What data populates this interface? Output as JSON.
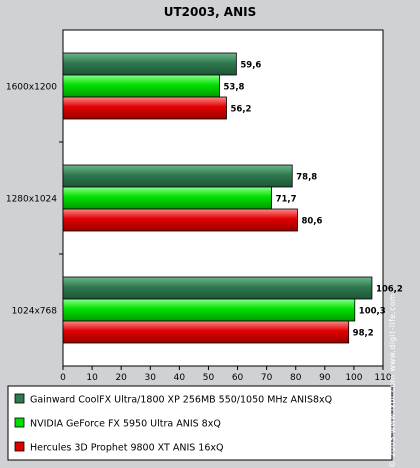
{
  "chart_data": {
    "type": "bar",
    "orientation": "horizontal",
    "title": "UT2003, ANIS",
    "categories": [
      "1600x1200",
      "1280x1024",
      "1024x768"
    ],
    "series": [
      {
        "name": "Gainward CoolFX Ultra/1800 XP 256MB 550/1050 MHz ANIS8xQ",
        "color": "#2f7a4f",
        "values": [
          59.6,
          78.8,
          106.2
        ],
        "labels": [
          "59,6",
          "78,8",
          "106,2"
        ]
      },
      {
        "name": "NVIDIA GeForce FX 5950 Ultra ANIS 8xQ",
        "color": "#00e000",
        "values": [
          53.8,
          71.7,
          100.3
        ],
        "labels": [
          "53,8",
          "71,7",
          "100,3"
        ]
      },
      {
        "name": "Hercules 3D Prophet 9800 XT ANIS 16xQ",
        "color": "#e00000",
        "values": [
          56.2,
          80.6,
          98.2
        ],
        "labels": [
          "56,2",
          "80,6",
          "98,2"
        ]
      }
    ],
    "xlim": [
      0,
      110
    ],
    "xticks": [
      0,
      10,
      20,
      30,
      40,
      50,
      60,
      70,
      80,
      90,
      100,
      110
    ],
    "grid": false,
    "legend_position": "bottom"
  },
  "watermark": "© 2003 www.ixbt.com  www.digit-life.com"
}
